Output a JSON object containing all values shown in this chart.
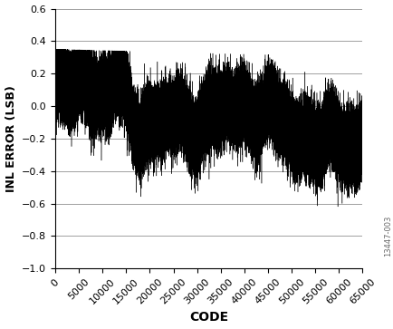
{
  "title": "",
  "xlabel": "CODE",
  "ylabel": "INL ERROR (LSB)",
  "xlim": [
    0,
    65000
  ],
  "ylim": [
    -1.0,
    0.6
  ],
  "yticks": [
    -1.0,
    -0.8,
    -0.6,
    -0.4,
    -0.2,
    0,
    0.2,
    0.4,
    0.6
  ],
  "xticks": [
    0,
    5000,
    10000,
    15000,
    20000,
    25000,
    30000,
    35000,
    40000,
    45000,
    50000,
    55000,
    60000,
    65000
  ],
  "grid_color": "#a0a0a0",
  "line_color": "#000000",
  "background_color": "#ffffff",
  "watermark": "13447-003",
  "seed": 42,
  "n_points": 65536,
  "xlabel_fontsize": 10,
  "ylabel_fontsize": 9,
  "tick_fontsize": 8,
  "watermark_fontsize": 6
}
